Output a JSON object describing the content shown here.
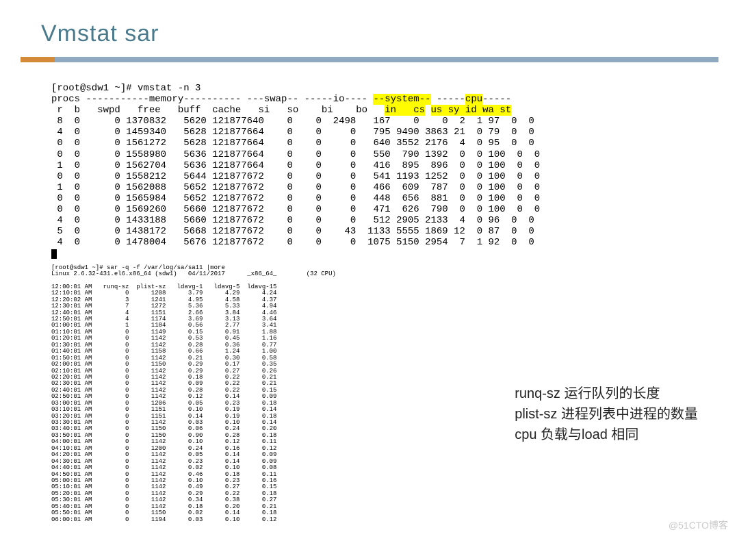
{
  "title": "Vmstat sar",
  "watermark": "@51CTO博客",
  "vmstat": {
    "cmd": "[root@sdw1 ~]# vmstat -n 3",
    "hdr1_a": "procs -----------memory---------- ---swap-- -----io---- ",
    "hdr1_b": "--system--",
    "hdr1_c": " -----",
    "hdr1_d": "cpu",
    "hdr1_e": "-----",
    "hdr2_a": " r  b   swpd   free   buff  cache   si   so    bi    bo   ",
    "hdr2_b": "in   cs",
    "hdr2_c": " ",
    "hdr2_d": "us sy id wa st",
    "rows": [
      " 8  0      0 1370832   5620 121877640    0    0  2498   167    0    0  2  1 97  0  0",
      " 4  0      0 1459340   5628 121877664    0    0     0   795 9490 3863 21  0 79  0  0",
      " 0  0      0 1561272   5628 121877664    0    0     0   640 3552 2176  4  0 95  0  0",
      " 0  0      0 1558980   5636 121877664    0    0     0   550  790 1392  0  0 100  0  0",
      " 1  0      0 1562704   5636 121877664    0    0     0   416  895  896  0  0 100  0  0",
      " 0  0      0 1558212   5644 121877672    0    0     0   541 1193 1252  0  0 100  0  0",
      " 1  0      0 1562088   5652 121877672    0    0     0   466  609  787  0  0 100  0  0",
      " 0  0      0 1565984   5652 121877672    0    0     0   448  656  881  0  0 100  0  0",
      " 0  0      0 1569260   5660 121877672    0    0     0   471  626  790  0  0 100  0  0",
      " 4  0      0 1433188   5660 121877672    0    0     0   512 2905 2133  4  0 96  0  0",
      " 5  0      0 1438172   5668 121877672    0    0    43  1133 5555 1869 12  0 87  0  0",
      " 4  0      0 1478004   5676 121877672    0    0     0  1075 5150 2954  7  1 92  0  0"
    ]
  },
  "sar": {
    "cmd": "[root@sdw1 ~]# sar -q -f /var/log/sa/sa11 |more",
    "hdr": "Linux 2.6.32-431.el6.x86_64 (sdw1)   04/11/2017      _x86_64_        (32 CPU)",
    "cols": "12:00:01 AM   runq-sz  plist-sz   ldavg-1   ldavg-5  ldavg-15",
    "rows": [
      "12:10:01 AM         0      1208      3.79      4.29      4.24",
      "12:20:02 AM         3      1241      4.95      4.58      4.37",
      "12:30:01 AM         7      1272      5.36      5.33      4.94",
      "12:40:01 AM         4      1151      2.66      3.84      4.46",
      "12:50:01 AM         4      1174      3.69      3.13      3.64",
      "01:00:01 AM         1      1184      0.56      2.77      3.41",
      "01:10:01 AM         0      1149      0.15      0.91      1.88",
      "01:20:01 AM         0      1142      0.53      0.45      1.16",
      "01:30:01 AM         0      1142      0.28      0.36      0.77",
      "01:40:01 AM         0      1158      0.66      1.24      1.00",
      "01:50:01 AM         0      1142      0.21      0.30      0.58",
      "02:00:01 AM         0      1150      0.29      0.17      0.35",
      "02:10:01 AM         0      1142      0.29      0.27      0.26",
      "02:20:01 AM         0      1142      0.18      0.22      0.21",
      "02:30:01 AM         0      1142      0.09      0.22      0.21",
      "02:40:01 AM         0      1142      0.28      0.22      0.15",
      "02:50:01 AM         0      1142      0.12      0.14      0.09",
      "03:00:01 AM         0      1206      0.05      0.23      0.18",
      "03:10:01 AM         0      1151      0.10      0.19      0.14",
      "03:20:01 AM         0      1151      0.14      0.19      0.18",
      "03:30:01 AM         0      1142      0.03      0.10      0.14",
      "03:40:01 AM         0      1150      0.06      0.24      0.20",
      "03:50:01 AM         0      1150      0.90      0.28      0.18",
      "04:00:01 AM         0      1142      0.10      0.12      0.11",
      "04:10:01 AM         0      1200      0.24      0.16      0.12",
      "04:20:01 AM         0      1142      0.05      0.14      0.09",
      "04:30:01 AM         0      1142      0.23      0.14      0.09",
      "04:40:01 AM         0      1142      0.02      0.10      0.08",
      "04:50:01 AM         0      1142      0.46      0.18      0.11",
      "05:00:01 AM         0      1142      0.10      0.23      0.16",
      "05:10:01 AM         0      1142      0.49      0.27      0.15",
      "05:20:01 AM         0      1142      0.29      0.22      0.18",
      "05:30:01 AM         0      1142      0.34      0.38      0.27",
      "05:40:01 AM         0      1142      0.18      0.20      0.21",
      "05:50:01 AM         0      1150      0.02      0.14      0.18",
      "06:00:01 AM         0      1194      0.03      0.10      0.12"
    ]
  },
  "notes": {
    "l1": "runq-sz 运行队列的长度",
    "l2": "plist-sz 进程列表中进程的数量",
    "l3": "cpu 负载与load 相同"
  }
}
